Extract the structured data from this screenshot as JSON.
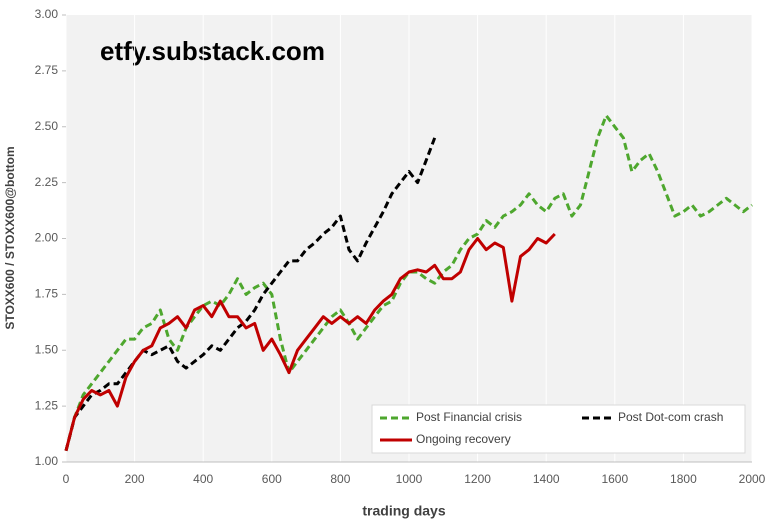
{
  "chart_data": {
    "type": "line",
    "title": "etfy.substack.com",
    "x_label": "trading days",
    "y_label": "STOXX600 / STOXX600@bottom",
    "x": [
      0,
      25,
      50,
      75,
      100,
      125,
      150,
      175,
      200,
      225,
      250,
      275,
      300,
      325,
      350,
      375,
      400,
      425,
      450,
      475,
      500,
      525,
      550,
      575,
      600,
      625,
      650,
      675,
      700,
      725,
      750,
      775,
      800,
      825,
      850,
      875,
      900,
      925,
      950,
      975,
      1000,
      1025,
      1050,
      1075,
      1100,
      1125,
      1150,
      1175,
      1200,
      1225,
      1250,
      1275,
      1300,
      1325,
      1350,
      1375,
      1400,
      1425,
      1450,
      1475,
      1500,
      1525,
      1550,
      1575,
      1600,
      1625,
      1650,
      1675,
      1700,
      1725,
      1750,
      1775,
      1800,
      1825,
      1850,
      1875,
      1900,
      1925,
      1950,
      1975,
      2000
    ],
    "series": [
      {
        "name": "Post Financial crisis",
        "color": "#4ea72e",
        "dashed": true,
        "values": [
          1.05,
          1.2,
          1.3,
          1.35,
          1.4,
          1.45,
          1.5,
          1.55,
          1.55,
          1.6,
          1.62,
          1.68,
          1.55,
          1.5,
          1.6,
          1.65,
          1.7,
          1.72,
          1.7,
          1.75,
          1.82,
          1.75,
          1.78,
          1.8,
          1.75,
          1.55,
          1.4,
          1.45,
          1.5,
          1.55,
          1.6,
          1.65,
          1.68,
          1.62,
          1.55,
          1.6,
          1.65,
          1.7,
          1.72,
          1.8,
          1.85,
          1.85,
          1.82,
          1.8,
          1.85,
          1.88,
          1.95,
          2.0,
          2.02,
          2.08,
          2.05,
          2.1,
          2.12,
          2.15,
          2.2,
          2.15,
          2.12,
          2.18,
          2.2,
          2.1,
          2.15,
          2.3,
          2.45,
          2.55,
          2.5,
          2.45,
          2.3,
          2.35,
          2.38,
          2.3,
          2.2,
          2.1,
          2.12,
          2.15,
          2.1,
          2.12,
          2.15,
          2.18,
          2.15,
          2.12,
          2.15
        ]
      },
      {
        "name": "Post Dot-com crash",
        "color": "#000000",
        "dashed": true,
        "values": [
          1.05,
          1.2,
          1.25,
          1.3,
          1.32,
          1.35,
          1.35,
          1.4,
          1.45,
          1.5,
          1.48,
          1.5,
          1.52,
          1.45,
          1.42,
          1.45,
          1.48,
          1.52,
          1.5,
          1.55,
          1.6,
          1.63,
          1.68,
          1.75,
          1.8,
          1.85,
          1.9,
          1.9,
          1.95,
          1.98,
          2.02,
          2.05,
          2.1,
          1.95,
          1.9,
          1.98,
          2.05,
          2.12,
          2.2,
          2.25,
          2.3,
          2.25,
          2.35,
          2.45,
          null,
          null,
          null,
          null,
          null,
          null,
          null,
          null,
          null,
          null,
          null,
          null,
          null,
          null,
          null,
          null,
          null,
          null,
          null,
          null,
          null,
          null,
          null,
          null,
          null,
          null,
          null,
          null,
          null,
          null,
          null,
          null,
          null,
          null,
          null,
          null,
          null
        ]
      },
      {
        "name": "Ongoing recovery",
        "color": "#c00000",
        "dashed": false,
        "values": [
          1.05,
          1.2,
          1.28,
          1.32,
          1.3,
          1.32,
          1.25,
          1.38,
          1.45,
          1.5,
          1.52,
          1.6,
          1.62,
          1.65,
          1.6,
          1.68,
          1.7,
          1.65,
          1.72,
          1.65,
          1.65,
          1.6,
          1.62,
          1.5,
          1.55,
          1.48,
          1.4,
          1.5,
          1.55,
          1.6,
          1.65,
          1.62,
          1.65,
          1.62,
          1.65,
          1.62,
          1.68,
          1.72,
          1.75,
          1.82,
          1.85,
          1.86,
          1.85,
          1.88,
          1.82,
          1.82,
          1.85,
          1.95,
          2.0,
          1.95,
          1.98,
          1.96,
          1.72,
          1.92,
          1.95,
          2.0,
          1.98,
          2.02,
          null,
          null,
          null,
          null,
          null,
          null,
          null,
          null,
          null,
          null,
          null,
          null,
          null,
          null,
          null,
          null,
          null,
          null,
          null,
          null,
          null,
          null,
          null
        ]
      }
    ],
    "xlim": [
      0,
      2000
    ],
    "xticks": [
      0,
      200,
      400,
      600,
      800,
      1000,
      1200,
      1400,
      1600,
      1800,
      2000
    ],
    "ylim": [
      1,
      3
    ],
    "yticks": [
      {
        "value": 1,
        "label": "1.00"
      },
      {
        "value": 1.25,
        "label": "1.25"
      },
      {
        "value": 1.5,
        "label": "1.50"
      },
      {
        "value": 1.75,
        "label": "1.75"
      },
      {
        "value": 2,
        "label": "2.00"
      },
      {
        "value": 2.25,
        "label": "2.25"
      },
      {
        "value": 2.5,
        "label": "2.50"
      },
      {
        "value": 2.75,
        "label": "2.75"
      },
      {
        "value": 3,
        "label": "3.00"
      }
    ],
    "grid": true,
    "legend": "bottom-right"
  }
}
